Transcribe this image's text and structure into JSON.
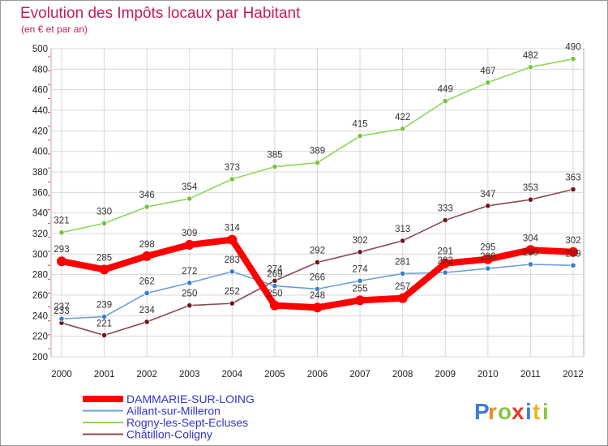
{
  "chart_data": {
    "type": "line",
    "title": "Evolution des Impôts locaux par Habitant",
    "subtitle": "(en € et par an)",
    "xlabel": "",
    "ylabel": "",
    "ylim": [
      200,
      500
    ],
    "yticks": [
      200,
      220,
      240,
      260,
      280,
      300,
      320,
      340,
      360,
      380,
      400,
      420,
      440,
      460,
      480,
      500
    ],
    "x": [
      "2000",
      "2001",
      "2002",
      "2003",
      "2004",
      "2005",
      "2006",
      "2007",
      "2008",
      "2009",
      "2010",
      "2011",
      "2012"
    ],
    "grid": true,
    "legend_position": "bottom-left",
    "series": [
      {
        "name": "Rogny-les-Sept-Ecluses",
        "color": "#8ed65a",
        "marker": "#7ac142",
        "values": [
          321,
          330,
          346,
          354,
          373,
          385,
          389,
          415,
          422,
          449,
          467,
          482,
          490
        ],
        "labels": [
          "321",
          "330",
          "346",
          "354",
          "373",
          "385",
          "389",
          "415",
          "422",
          "449",
          "467",
          "482",
          "490"
        ]
      },
      {
        "name": "Châtillon-Coligny",
        "color": "#8b4a50",
        "marker": "#6b1a22",
        "values": [
          233,
          221,
          234,
          250,
          252,
          274,
          292,
          302,
          313,
          333,
          347,
          353,
          363
        ],
        "labels": [
          "233",
          "221",
          "234",
          "250",
          "252",
          "274",
          "292",
          "302",
          "313",
          "333",
          "347",
          "353",
          "363"
        ]
      },
      {
        "name": "Aillant-sur-Milleron",
        "color": "#6a9fd4",
        "marker": "#3d7fc4",
        "values": [
          237,
          239,
          262,
          272,
          283,
          269,
          266,
          274,
          281,
          282,
          286,
          290,
          289
        ],
        "labels": [
          "237",
          "239",
          "262",
          "272",
          "283",
          "269",
          "266",
          "274",
          "281",
          "282",
          "286",
          "290",
          "289"
        ]
      },
      {
        "name": "DAMMARIE-SUR-LOING",
        "color": "#ff0000",
        "marker": "#ff0000",
        "values": [
          293,
          285,
          298,
          309,
          314,
          250,
          248,
          255,
          257,
          291,
          295,
          304,
          302
        ],
        "labels": [
          "293",
          "285",
          "298",
          "309",
          "314",
          "250",
          "248",
          "255",
          "257",
          "291",
          "295",
          "304",
          "302"
        ]
      }
    ],
    "legend": [
      {
        "name": "DAMMARIE-SUR-LOING",
        "color": "#ff0000",
        "thick": true
      },
      {
        "name": "Aillant-sur-Milleron",
        "color": "#6a9fd4",
        "thick": false
      },
      {
        "name": "Rogny-les-Sept-Ecluses",
        "color": "#8ed65a",
        "thick": false
      },
      {
        "name": "Châtillon-Coligny",
        "color": "#8b4a50",
        "thick": false
      }
    ]
  },
  "logo": {
    "text": "Proxiti",
    "letters": [
      {
        "ch": "P",
        "color": "#3a7fd5"
      },
      {
        "ch": "r",
        "color": "#f08a24"
      },
      {
        "ch": "o",
        "color": "#8cc63f"
      },
      {
        "ch": "x",
        "color": "#e03c31"
      },
      {
        "ch": "i",
        "color": "#3a7fd5"
      },
      {
        "ch": "t",
        "color": "#f0b323"
      },
      {
        "ch": "i",
        "color": "#8cc63f"
      }
    ]
  }
}
